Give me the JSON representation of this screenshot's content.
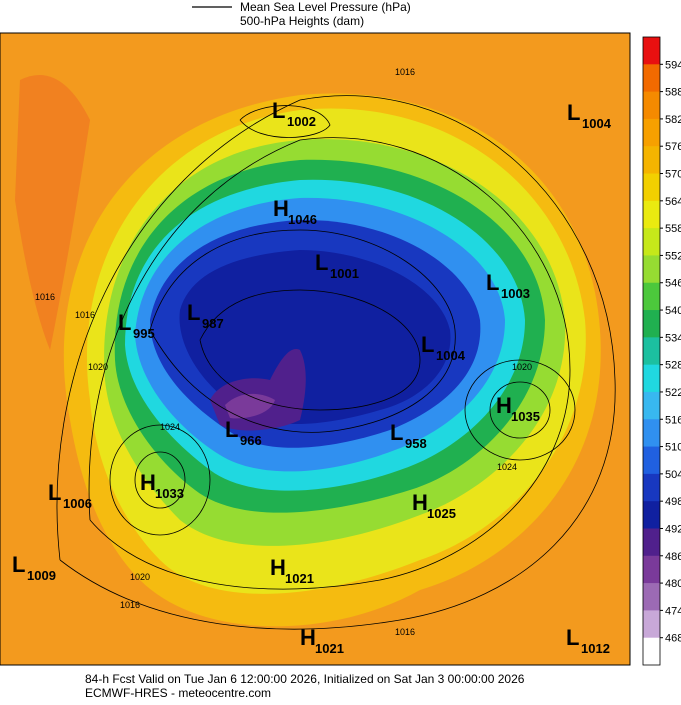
{
  "legend": {
    "lines": [
      "Mean Sea Level Pressure (hPa)",
      "500-hPa Heights (dam)"
    ]
  },
  "colorbar": {
    "ticks": [
      594,
      588,
      582,
      576,
      570,
      564,
      558,
      552,
      546,
      540,
      534,
      528,
      522,
      516,
      510,
      504,
      498,
      492,
      486,
      480,
      474,
      468
    ],
    "colors": [
      "#e81010",
      "#f26a00",
      "#f58a00",
      "#f7a000",
      "#f5b400",
      "#f2d000",
      "#eaea10",
      "#c6e81a",
      "#96dc32",
      "#4cc83c",
      "#20b050",
      "#1cc0a0",
      "#20d8e0",
      "#38b8f0",
      "#3090f0",
      "#2060e0",
      "#1838c0",
      "#1020a0",
      "#50208c",
      "#7a3a9a",
      "#9c6ab4",
      "#c8a8d8",
      "#ffffff"
    ]
  },
  "centers": [
    {
      "type": "L",
      "value": 1002
    },
    {
      "type": "L",
      "value": 1004
    },
    {
      "type": "H",
      "value": 1046
    },
    {
      "type": "L",
      "value": 1001
    },
    {
      "type": "L",
      "value": 1003
    },
    {
      "type": "L",
      "value": 995
    },
    {
      "type": "L",
      "value": 987
    },
    {
      "type": "L",
      "value": 1004
    },
    {
      "type": "H",
      "value": 1035
    },
    {
      "type": "L",
      "value": 966
    },
    {
      "type": "L",
      "value": 958
    },
    {
      "type": "L",
      "value": 1006
    },
    {
      "type": "H",
      "value": 1033
    },
    {
      "type": "H",
      "value": 1025
    },
    {
      "type": "L",
      "value": 1009
    },
    {
      "type": "H",
      "value": 1021
    },
    {
      "type": "H",
      "value": 1021
    },
    {
      "type": "L",
      "value": 1012
    }
  ],
  "contour_labels": [
    "1016",
    "1016",
    "1016",
    "1020",
    "1024",
    "1020",
    "1016",
    "1024",
    "1020",
    "1016"
  ],
  "footer": {
    "lines": [
      "84-h Fcst Valid on Tue Jan  6 12:00:00 2026, Initialized on Sat Jan  3 00:00:00 2026",
      "ECMWF-HRES  - meteocentre.com"
    ]
  }
}
